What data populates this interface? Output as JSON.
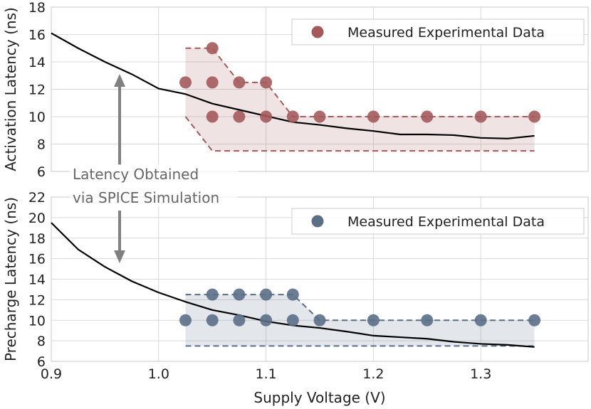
{
  "chart_data": [
    {
      "type": "line",
      "id": "activation",
      "ylabel": "Activation Latency (ns)",
      "xlim": [
        0.9,
        1.4
      ],
      "ylim": [
        6,
        18
      ],
      "x_ticks": [
        0.9,
        1.0,
        1.1,
        1.2,
        1.3
      ],
      "y_ticks": [
        6,
        8,
        10,
        12,
        14,
        16,
        18
      ],
      "grid": true,
      "legend": {
        "label": "Measured Experimental Data",
        "position": "top-right"
      },
      "marker_color": "#a45a5a",
      "band_color": "#a45a5a",
      "simulation": {
        "name": "SPICE Simulation",
        "x": [
          0.9,
          0.925,
          0.95,
          0.975,
          1.0,
          1.025,
          1.05,
          1.075,
          1.1,
          1.125,
          1.15,
          1.175,
          1.2,
          1.225,
          1.25,
          1.275,
          1.3,
          1.325,
          1.35
        ],
        "y": [
          16.1,
          15.0,
          14.0,
          13.1,
          12.05,
          11.65,
          10.95,
          10.5,
          10.05,
          9.6,
          9.4,
          9.15,
          8.95,
          8.7,
          8.7,
          8.65,
          8.45,
          8.4,
          8.6
        ]
      },
      "measured": {
        "name": "Measured Experimental Data",
        "x": [
          1.025,
          1.05,
          1.05,
          1.05,
          1.075,
          1.075,
          1.1,
          1.1,
          1.125,
          1.15,
          1.2,
          1.25,
          1.3,
          1.35
        ],
        "y": [
          12.5,
          15.0,
          12.5,
          10.0,
          12.5,
          10.0,
          12.5,
          10.0,
          10.0,
          10.0,
          10.0,
          10.0,
          10.0,
          10.0
        ]
      },
      "range_band": {
        "x": [
          1.025,
          1.05,
          1.075,
          1.1,
          1.125,
          1.15,
          1.2,
          1.25,
          1.3,
          1.35
        ],
        "upper": [
          15.0,
          15.0,
          12.5,
          12.5,
          10.0,
          10.0,
          10.0,
          10.0,
          10.0,
          10.0
        ],
        "lower": [
          10.0,
          7.5,
          7.5,
          7.5,
          7.5,
          7.5,
          7.5,
          7.5,
          7.5,
          7.5
        ]
      }
    },
    {
      "type": "line",
      "id": "precharge",
      "ylabel": "Precharge Latency (ns)",
      "xlabel": "Supply Voltage (V)",
      "xlim": [
        0.9,
        1.4
      ],
      "ylim": [
        6,
        22
      ],
      "x_ticks": [
        0.9,
        1.0,
        1.1,
        1.2,
        1.3
      ],
      "y_ticks": [
        6,
        8,
        10,
        12,
        14,
        16,
        18,
        20,
        22
      ],
      "grid": true,
      "legend": {
        "label": "Measured Experimental Data",
        "position": "top-right"
      },
      "marker_color": "#5a6f86",
      "band_color": "#5a6f86",
      "simulation": {
        "name": "SPICE Simulation",
        "x": [
          0.9,
          0.925,
          0.95,
          0.975,
          1.0,
          1.025,
          1.05,
          1.075,
          1.1,
          1.125,
          1.15,
          1.175,
          1.2,
          1.225,
          1.25,
          1.275,
          1.3,
          1.325,
          1.35
        ],
        "y": [
          19.5,
          16.9,
          15.2,
          13.8,
          12.7,
          11.8,
          11.0,
          10.5,
          9.9,
          9.5,
          9.25,
          8.9,
          8.5,
          8.35,
          8.2,
          7.9,
          7.7,
          7.6,
          7.4
        ]
      },
      "measured": {
        "name": "Measured Experimental Data",
        "x": [
          1.025,
          1.05,
          1.05,
          1.075,
          1.075,
          1.1,
          1.1,
          1.125,
          1.125,
          1.15,
          1.2,
          1.25,
          1.3,
          1.35
        ],
        "y": [
          10.0,
          12.5,
          10.0,
          12.5,
          10.0,
          12.5,
          10.0,
          12.5,
          10.0,
          10.0,
          10.0,
          10.0,
          10.0,
          10.0
        ]
      },
      "range_band": {
        "x": [
          1.025,
          1.125,
          1.15,
          1.35
        ],
        "upper": [
          12.5,
          12.5,
          10.0,
          10.0
        ],
        "lower": [
          7.5,
          7.5,
          7.5,
          7.5
        ]
      }
    }
  ],
  "annotation": {
    "lines": [
      "Latency Obtained",
      "via SPICE Simulation"
    ],
    "arrow_color": "#808080"
  }
}
